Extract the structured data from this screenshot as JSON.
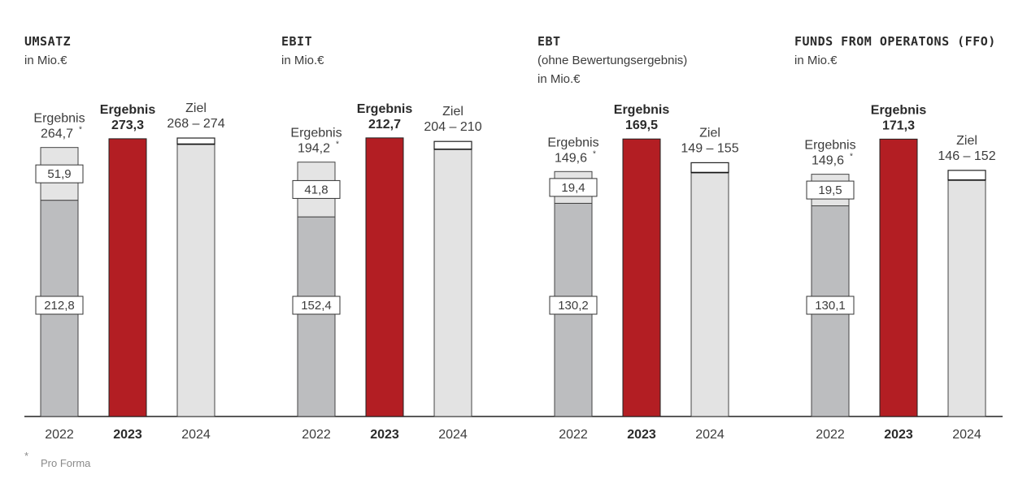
{
  "colors": {
    "result_dark": "#b31e23",
    "base_gray": "#bcbdbf",
    "delta_light": "#e4e4e4",
    "target_fill": "#e3e3e3",
    "axis": "#222222"
  },
  "footnote": {
    "marker": "*",
    "text": "Pro Forma"
  },
  "chart_data": [
    {
      "type": "bar",
      "title": "UMSATZ",
      "subtitle_lines": [
        "in Mio.€"
      ],
      "ylim": [
        0,
        290
      ],
      "categories": [
        "2022",
        "2023",
        "2024"
      ],
      "bars": [
        {
          "year": "2022",
          "kind": "stacked",
          "label": "Ergebnis",
          "value_text": "264,7",
          "footnote": "*",
          "total": 264.7,
          "segments": [
            {
              "name": "base",
              "value": 212.8,
              "text": "212,8"
            },
            {
              "name": "delta",
              "value": 51.9,
              "text": "51,9"
            }
          ]
        },
        {
          "year": "2023",
          "kind": "result",
          "label": "Ergebnis",
          "value_text": "273,3",
          "value": 273.3
        },
        {
          "year": "2024",
          "kind": "target",
          "label": "Ziel",
          "value_text": "268 – 274",
          "low": 268,
          "high": 274
        }
      ]
    },
    {
      "type": "bar",
      "title": "EBIT",
      "subtitle_lines": [
        "in Mio.€"
      ],
      "ylim": [
        0,
        225
      ],
      "categories": [
        "2022",
        "2023",
        "2024"
      ],
      "bars": [
        {
          "year": "2022",
          "kind": "stacked",
          "label": "Ergebnis",
          "value_text": "194,2",
          "footnote": "*",
          "total": 194.2,
          "segments": [
            {
              "name": "base",
              "value": 152.4,
              "text": "152,4"
            },
            {
              "name": "delta",
              "value": 41.8,
              "text": "41,8"
            }
          ]
        },
        {
          "year": "2023",
          "kind": "result",
          "label": "Ergebnis",
          "value_text": "212,7",
          "value": 212.7
        },
        {
          "year": "2024",
          "kind": "target",
          "label": "Ziel",
          "value_text": "204 – 210",
          "low": 204,
          "high": 210
        }
      ]
    },
    {
      "type": "bar",
      "title": "EBT",
      "subtitle_lines": [
        "(ohne Bewertungsergebnis)",
        "in Mio.€"
      ],
      "ylim": [
        0,
        180
      ],
      "categories": [
        "2022",
        "2023",
        "2024"
      ],
      "bars": [
        {
          "year": "2022",
          "kind": "stacked",
          "label": "Ergebnis",
          "value_text": "149,6",
          "footnote": "*",
          "total": 149.6,
          "segments": [
            {
              "name": "base",
              "value": 130.2,
              "text": "130,2"
            },
            {
              "name": "delta",
              "value": 19.4,
              "text": "19,4"
            }
          ]
        },
        {
          "year": "2023",
          "kind": "result",
          "label": "Ergebnis",
          "value_text": "169,5",
          "value": 169.5
        },
        {
          "year": "2024",
          "kind": "target",
          "label": "Ziel",
          "value_text": "149 – 155",
          "low": 149,
          "high": 155
        }
      ]
    },
    {
      "type": "bar",
      "title": "FUNDS FROM OPERATONS (FFO)",
      "subtitle_lines": [
        "in Mio.€"
      ],
      "ylim": [
        0,
        182
      ],
      "categories": [
        "2022",
        "2023",
        "2024"
      ],
      "bars": [
        {
          "year": "2022",
          "kind": "stacked",
          "label": "Ergebnis",
          "value_text": "149,6",
          "footnote": "*",
          "total": 149.6,
          "segments": [
            {
              "name": "base",
              "value": 130.1,
              "text": "130,1"
            },
            {
              "name": "delta",
              "value": 19.5,
              "text": "19,5"
            }
          ]
        },
        {
          "year": "2023",
          "kind": "result",
          "label": "Ergebnis",
          "value_text": "171,3",
          "value": 171.3
        },
        {
          "year": "2024",
          "kind": "target",
          "label": "Ziel",
          "value_text": "146 – 152",
          "low": 146,
          "high": 152
        }
      ]
    }
  ]
}
